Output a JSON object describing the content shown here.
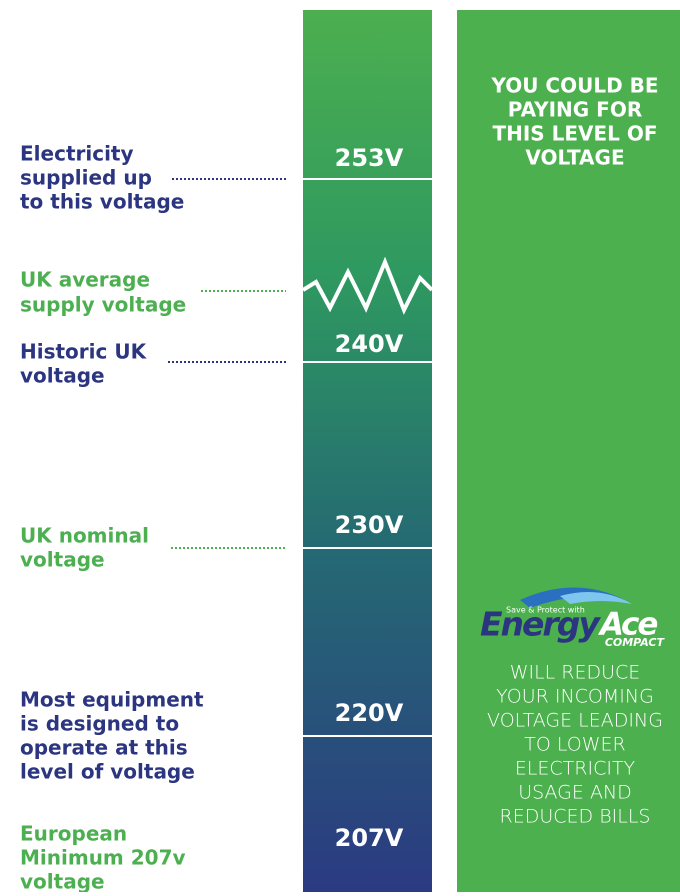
{
  "left_labels": [
    {
      "lines": [
        "Electricity",
        "supplied up",
        "to this voltage"
      ]
    },
    {
      "lines": [
        "UK average",
        "supply voltage"
      ]
    },
    {
      "lines": [
        "Historic UK",
        "voltage"
      ]
    },
    {
      "lines": [
        "UK nominal",
        "voltage"
      ]
    },
    {
      "lines": [
        "Most equipment",
        "is designed to",
        "operate at this",
        "level of voltage"
      ]
    },
    {
      "lines": [
        "European",
        "Minimum 207v",
        "voltage"
      ]
    }
  ],
  "voltages": [
    "253V",
    "240V",
    "230V",
    "220V",
    "207V"
  ],
  "panel": {
    "headline": [
      "YOU COULD BE",
      "PAYING FOR",
      "THIS LEVEL OF",
      "VOLTAGE"
    ],
    "logo": {
      "tagline": "Save & Protect with",
      "brand_a": "Energy",
      "brand_b": "Ace",
      "sub": "COMPACT"
    },
    "body": [
      "WILL REDUCE",
      "YOUR INCOMING",
      "VOLTAGE LEADING",
      "TO LOWER",
      "ELECTRICITY",
      "USAGE AND",
      "REDUCED BILLS"
    ]
  }
}
